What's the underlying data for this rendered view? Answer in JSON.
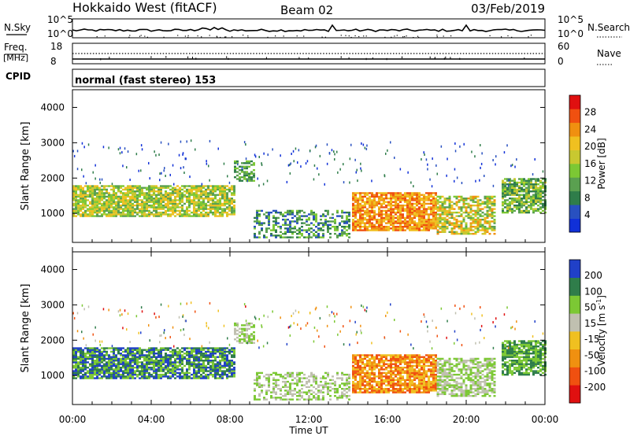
{
  "header": {
    "station": "Hokkaido West (fitACF)",
    "beam": "Beam 02",
    "date": "03/Feb/2019"
  },
  "top_panels": {
    "nsky_label": "N.Sky",
    "nsky_ticks": [
      "10^5",
      "10^0"
    ],
    "nsearch_label": "N.Search",
    "nsearch_ticks": [
      "10^5",
      "10^0"
    ],
    "freq_label": "Freq.",
    "freq_unit": "[MHz]",
    "freq_ticks": [
      "18",
      "8"
    ],
    "nave_label": "Nave",
    "nave_ticks": [
      "60",
      "0"
    ],
    "cpid_label": "CPID",
    "cpid_text": "normal (fast stereo) 153"
  },
  "chart_data": [
    {
      "type": "heatmap",
      "name": "power",
      "ylabel": "Slant Range [km]",
      "yticks": [
        "4000",
        "3000",
        "2000",
        "1000"
      ],
      "ylim": [
        180,
        4500
      ],
      "colorbar_label": "Power [dB]",
      "colorbar_ticks": [
        "28",
        "24",
        "20",
        "16",
        "12",
        "8",
        "4"
      ],
      "colors": [
        "#1030d8",
        "#2850c0",
        "#2f7d4a",
        "#5aa050",
        "#7cc834",
        "#c8c830",
        "#f0c020",
        "#f09010",
        "#f05010",
        "#e01010"
      ]
    },
    {
      "type": "heatmap",
      "name": "velocity",
      "ylabel": "Slant Range [km]",
      "yticks": [
        "4000",
        "3000",
        "2000",
        "1000"
      ],
      "ylim": [
        180,
        4500
      ],
      "colorbar_label": "Velocity [m s",
      "colorbar_sup": "-1",
      "colorbar_ticks": [
        "200",
        "100",
        "50",
        "15",
        "-15",
        "-50",
        "-100",
        "-200"
      ],
      "colors": [
        "#2040c8",
        "#2f7d4a",
        "#7cc834",
        "#c0c0b0",
        "#f0c020",
        "#f09010",
        "#f05010",
        "#e01010"
      ]
    }
  ],
  "xaxis": {
    "ticks": [
      "00:00",
      "04:00",
      "08:00",
      "12:00",
      "16:00",
      "20:00",
      "00:00"
    ],
    "label": "Time UT"
  }
}
